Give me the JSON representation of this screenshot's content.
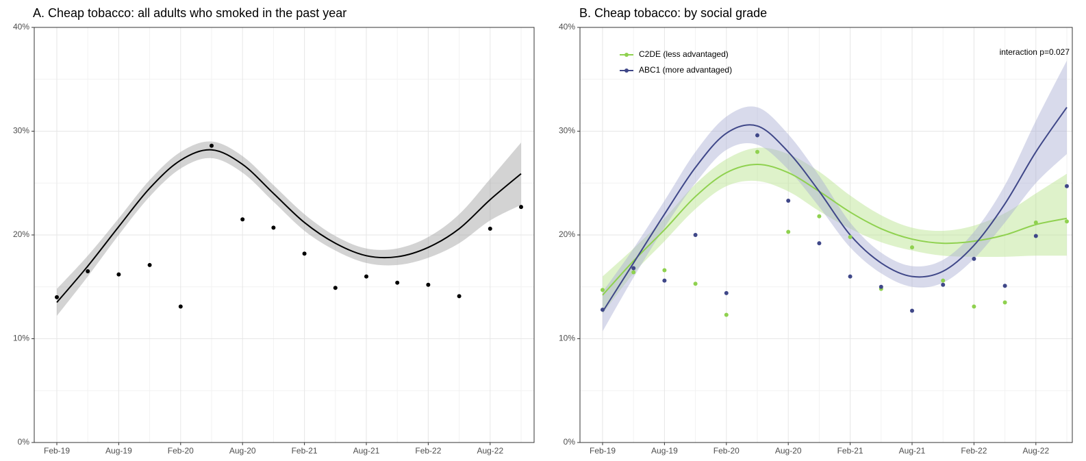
{
  "chart_data": [
    {
      "type": "line",
      "title": "A. Cheap tobacco: all adults who smoked in the past year",
      "categories": [
        "Feb-19",
        null,
        "Aug-19",
        null,
        "Feb-20",
        null,
        "Aug-20",
        null,
        "Feb-21",
        null,
        "Aug-21",
        null,
        "Feb-22",
        null,
        "Aug-22",
        null
      ],
      "series": [
        {
          "color": "#000000",
          "band_color": "#9e9e9e",
          "values": [
            14.0,
            16.5,
            16.2,
            17.1,
            13.1,
            28.6,
            21.5,
            20.7,
            18.2,
            14.9,
            16.0,
            15.4,
            15.2,
            14.1,
            20.6,
            22.7
          ],
          "fit": [
            13.5,
            17.0,
            20.8,
            24.5,
            27.2,
            28.2,
            26.8,
            24.0,
            21.2,
            19.2,
            18.0,
            17.9,
            18.8,
            20.6,
            23.4,
            25.9
          ],
          "fit_lower": [
            12.2,
            16.0,
            20.0,
            23.7,
            26.4,
            27.4,
            26.0,
            23.2,
            20.4,
            18.5,
            17.3,
            17.1,
            17.8,
            19.2,
            21.4,
            22.9
          ],
          "fit_upper": [
            14.8,
            18.0,
            21.6,
            25.3,
            28.0,
            29.0,
            27.6,
            24.8,
            22.0,
            19.9,
            18.7,
            18.7,
            19.8,
            22.0,
            25.4,
            28.9
          ]
        }
      ],
      "ylim": [
        0,
        40
      ],
      "yticks": [
        {
          "value": 0,
          "label": "0%"
        },
        {
          "value": 10,
          "label": "10%"
        },
        {
          "value": 20,
          "label": "20%"
        },
        {
          "value": 30,
          "label": "30%"
        },
        {
          "value": 40,
          "label": "40%"
        }
      ],
      "minor_yticks": [
        5,
        15,
        25,
        35
      ],
      "grid": true
    },
    {
      "type": "line",
      "title": "B. Cheap tobacco: by social grade",
      "categories": [
        "Feb-19",
        null,
        "Aug-19",
        null,
        "Feb-20",
        null,
        "Aug-20",
        null,
        "Feb-21",
        null,
        "Aug-21",
        null,
        "Feb-22",
        null,
        "Aug-22",
        null
      ],
      "series": [
        {
          "name": "C2DE (less advantaged)",
          "color": "#8fd14f",
          "band_color": "#b5e38a",
          "values": [
            14.7,
            16.4,
            16.6,
            15.3,
            12.3,
            28.0,
            20.3,
            21.8,
            19.8,
            14.8,
            18.8,
            15.6,
            13.1,
            13.5,
            21.2,
            21.3
          ],
          "fit": [
            14.2,
            17.5,
            20.5,
            23.7,
            26.0,
            26.8,
            26.0,
            24.2,
            22.2,
            20.6,
            19.6,
            19.2,
            19.4,
            20.0,
            21.0,
            21.6
          ],
          "fit_lower": [
            12.4,
            16.3,
            19.4,
            22.5,
            24.7,
            25.2,
            24.2,
            22.3,
            20.6,
            19.3,
            18.5,
            18.0,
            17.9,
            17.9,
            18.0,
            18.0
          ],
          "fit_upper": [
            16.0,
            18.7,
            21.6,
            24.9,
            27.3,
            28.4,
            27.8,
            26.1,
            23.8,
            21.9,
            20.7,
            20.4,
            20.9,
            22.1,
            24.0,
            25.9
          ]
        },
        {
          "name": "ABC1 (more advantaged)",
          "color": "#3f4788",
          "band_color": "#a9aed3",
          "values": [
            12.8,
            16.8,
            15.6,
            20.0,
            14.4,
            29.6,
            23.3,
            19.2,
            16.0,
            15.0,
            12.7,
            15.2,
            17.7,
            15.1,
            19.9,
            24.7
          ],
          "fit": [
            12.6,
            17.3,
            22.0,
            26.5,
            29.8,
            30.5,
            28.0,
            24.2,
            20.0,
            17.3,
            16.0,
            16.5,
            19.0,
            23.0,
            28.0,
            32.3
          ],
          "fit_lower": [
            10.7,
            15.9,
            20.7,
            25.0,
            28.2,
            28.7,
            26.3,
            22.7,
            18.8,
            16.3,
            15.0,
            15.4,
            17.7,
            21.2,
            25.0,
            27.8
          ],
          "fit_upper": [
            14.5,
            18.7,
            23.3,
            28.0,
            31.4,
            32.3,
            29.7,
            25.7,
            21.2,
            18.3,
            17.0,
            17.6,
            20.3,
            24.8,
            31.0,
            36.8
          ]
        }
      ],
      "ylim": [
        0,
        40
      ],
      "yticks": [
        {
          "value": 0,
          "label": "0%"
        },
        {
          "value": 10,
          "label": "10%"
        },
        {
          "value": 20,
          "label": "20%"
        },
        {
          "value": 30,
          "label": "30%"
        },
        {
          "value": 40,
          "label": "40%"
        }
      ],
      "minor_yticks": [
        5,
        15,
        25,
        35
      ],
      "grid": true,
      "legend": "top-left",
      "annotation": "interaction p=0.027"
    }
  ]
}
